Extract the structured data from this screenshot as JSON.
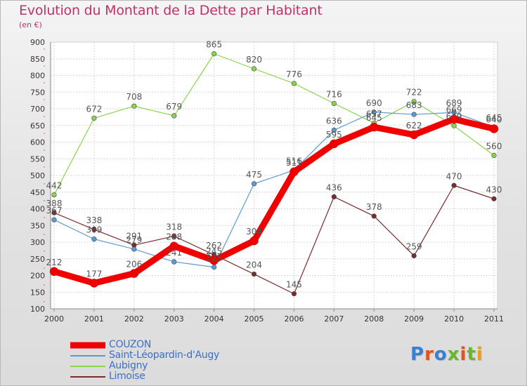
{
  "header": {
    "title": "Evolution du Montant de la Dette par Habitant",
    "subtitle": "(en €)"
  },
  "logo": {
    "text": "Proxiti",
    "colors": [
      "#3a7fd0",
      "#e2531f",
      "#3a7fd0",
      "#69b52e",
      "#e2531f",
      "#69b52e",
      "#e8a11f"
    ]
  },
  "chart_data": {
    "type": "line",
    "x": [
      "2000",
      "2001",
      "2002",
      "2003",
      "2004",
      "2005",
      "2006",
      "2007",
      "2008",
      "2009",
      "2010",
      "2011"
    ],
    "ylim": [
      100,
      900
    ],
    "yticks": [
      100,
      150,
      200,
      250,
      300,
      350,
      400,
      450,
      500,
      550,
      600,
      650,
      700,
      750,
      800,
      850,
      900
    ],
    "grid": true,
    "legend_position": "bottom-left",
    "series": [
      {
        "name": "COUZON",
        "color": "#f00000",
        "values": [
          212,
          177,
          206,
          288,
          245,
          304,
          511,
          595,
          645,
          622,
          669,
          640
        ],
        "labels": [
          "212",
          "177",
          "206",
          "288",
          "245",
          "304",
          "511",
          "595",
          "645",
          "622",
          "669",
          "640"
        ]
      },
      {
        "name": "Saint-Léopardin-d'Augy",
        "color": "#5b9bd5",
        "values": [
          367,
          309,
          279,
          241,
          225,
          475,
          516,
          636,
          690,
          683,
          689,
          645
        ],
        "labels": [
          "367",
          "309",
          "279",
          "241",
          "225",
          "475",
          "516",
          "636",
          "690",
          "683",
          "689",
          "645"
        ]
      },
      {
        "name": "Aubigny",
        "color": "#8bd34d",
        "values": [
          442,
          672,
          708,
          679,
          865,
          820,
          776,
          716,
          657,
          722,
          649,
          560
        ],
        "labels": [
          "442",
          "672",
          "708",
          "679",
          "865",
          "820",
          "776",
          "716",
          "657",
          "722",
          "649",
          "560"
        ]
      },
      {
        "name": "Limoise",
        "color": "#7b2c2c",
        "values": [
          388,
          338,
          291,
          318,
          262,
          204,
          145,
          436,
          378,
          259,
          470,
          430
        ],
        "labels": [
          "388",
          "338",
          "291",
          "318",
          "262",
          "204",
          "145",
          "436",
          "378",
          "259",
          "470",
          "430"
        ]
      }
    ]
  }
}
